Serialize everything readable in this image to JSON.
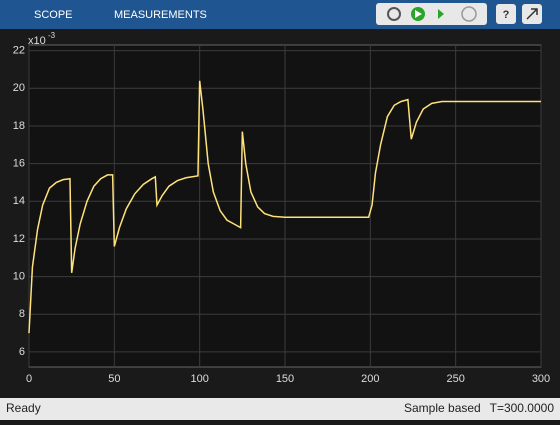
{
  "toolbar": {
    "tabs": [
      "SCOPE",
      "MEASUREMENTS"
    ]
  },
  "chart_data": {
    "type": "line",
    "x": [
      0,
      2,
      5,
      8,
      12,
      16,
      20,
      24,
      25,
      27,
      30,
      34,
      38,
      42,
      46,
      49,
      50,
      53,
      57,
      62,
      67,
      72,
      74,
      75,
      78,
      82,
      87,
      92,
      99,
      100,
      102,
      105,
      108,
      112,
      116,
      120,
      124,
      125,
      127,
      130,
      134,
      138,
      143,
      150,
      160,
      199,
      201,
      203,
      206,
      210,
      214,
      218,
      222,
      224,
      227,
      231,
      236,
      242,
      250,
      300
    ],
    "series": [
      {
        "color": "#ffe27a",
        "values": [
          7,
          10.5,
          12.5,
          13.8,
          14.7,
          15.0,
          15.15,
          15.2,
          10.2,
          11.5,
          12.8,
          14.0,
          14.8,
          15.2,
          15.4,
          15.4,
          11.6,
          12.6,
          13.6,
          14.4,
          14.9,
          15.2,
          15.3,
          13.8,
          14.3,
          14.8,
          15.1,
          15.25,
          15.35,
          20.4,
          18.8,
          16.0,
          14.5,
          13.5,
          13.0,
          12.8,
          12.6,
          17.7,
          16.0,
          14.5,
          13.7,
          13.35,
          13.2,
          13.15,
          13.15,
          13.15,
          13.8,
          15.5,
          17.0,
          18.5,
          19.1,
          19.3,
          19.4,
          17.3,
          18.2,
          18.9,
          19.2,
          19.3,
          19.3,
          19.3
        ]
      }
    ],
    "xlim": [
      0,
      300
    ],
    "xticks": [
      0,
      50,
      100,
      150,
      200,
      250,
      300
    ],
    "ylim": [
      5.2,
      22.3
    ],
    "yticks": [
      6,
      8,
      10,
      12,
      14,
      16,
      18,
      20,
      22
    ],
    "y_multiplier": "x10",
    "y_multiplier_exponent": "-3",
    "grid": true
  },
  "status": {
    "state": "Ready",
    "mode": "Sample based",
    "time": "T=300.0000"
  }
}
